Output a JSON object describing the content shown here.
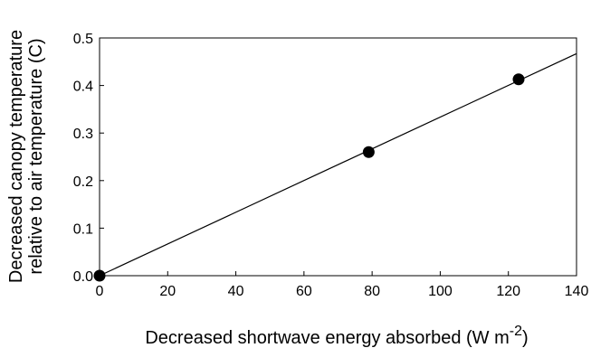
{
  "chart_data": {
    "type": "scatter",
    "title": "",
    "xlabel": "Decreased shortwave energy absorbed  (W m",
    "xlabel_superscript": "-2",
    "xlabel_suffix": ")",
    "ylabel_line1": "Decreased canopy temperature",
    "ylabel_line2": "relative to air temperature (C)",
    "xlim": [
      0,
      140
    ],
    "ylim": [
      0,
      0.5
    ],
    "xticks": [
      "0",
      "20",
      "40",
      "60",
      "80",
      "100",
      "120",
      "140"
    ],
    "yticks": [
      "0.0",
      "0.1",
      "0.2",
      "0.3",
      "0.4",
      "0.5"
    ],
    "grid": false,
    "points": [
      {
        "x": 0,
        "y": 0.0
      },
      {
        "x": 79,
        "y": 0.26
      },
      {
        "x": 123,
        "y": 0.413
      }
    ],
    "fit_line": {
      "x": [
        0,
        140
      ],
      "y": [
        0.0,
        0.467
      ]
    },
    "colors": {
      "marker": "#000000",
      "line": "#000000",
      "axis": "#000000"
    }
  }
}
